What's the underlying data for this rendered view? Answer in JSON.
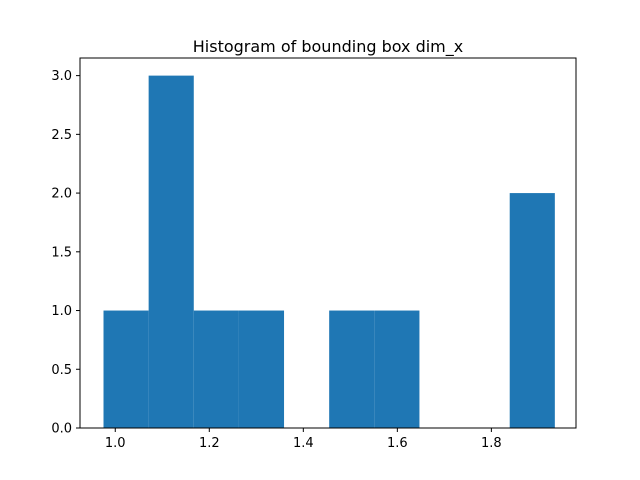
{
  "chart_data": {
    "type": "bar",
    "title": "Histogram of bounding box dim_x",
    "xlabel": "",
    "ylabel": "",
    "xlim": [
      0.925,
      1.98
    ],
    "ylim": [
      0,
      3.15
    ],
    "bar_color": "#1f77b4",
    "bins": [
      {
        "x_start": 0.975,
        "x_end": 1.071,
        "count": 1
      },
      {
        "x_start": 1.071,
        "x_end": 1.167,
        "count": 3
      },
      {
        "x_start": 1.167,
        "x_end": 1.263,
        "count": 1
      },
      {
        "x_start": 1.263,
        "x_end": 1.359,
        "count": 1
      },
      {
        "x_start": 1.359,
        "x_end": 1.455,
        "count": 0
      },
      {
        "x_start": 1.455,
        "x_end": 1.551,
        "count": 1
      },
      {
        "x_start": 1.551,
        "x_end": 1.647,
        "count": 1
      },
      {
        "x_start": 1.647,
        "x_end": 1.743,
        "count": 0
      },
      {
        "x_start": 1.743,
        "x_end": 1.839,
        "count": 0
      },
      {
        "x_start": 1.839,
        "x_end": 1.935,
        "count": 2
      }
    ],
    "x_ticks": [
      {
        "value": 1.0,
        "label": "1.0"
      },
      {
        "value": 1.2,
        "label": "1.2"
      },
      {
        "value": 1.4,
        "label": "1.4"
      },
      {
        "value": 1.6,
        "label": "1.6"
      },
      {
        "value": 1.8,
        "label": "1.8"
      }
    ],
    "y_ticks": [
      {
        "value": 0.0,
        "label": "0.0"
      },
      {
        "value": 0.5,
        "label": "0.5"
      },
      {
        "value": 1.0,
        "label": "1.0"
      },
      {
        "value": 1.5,
        "label": "1.5"
      },
      {
        "value": 2.0,
        "label": "2.0"
      },
      {
        "value": 2.5,
        "label": "2.5"
      },
      {
        "value": 3.0,
        "label": "3.0"
      }
    ],
    "grid": false,
    "legend": false
  }
}
